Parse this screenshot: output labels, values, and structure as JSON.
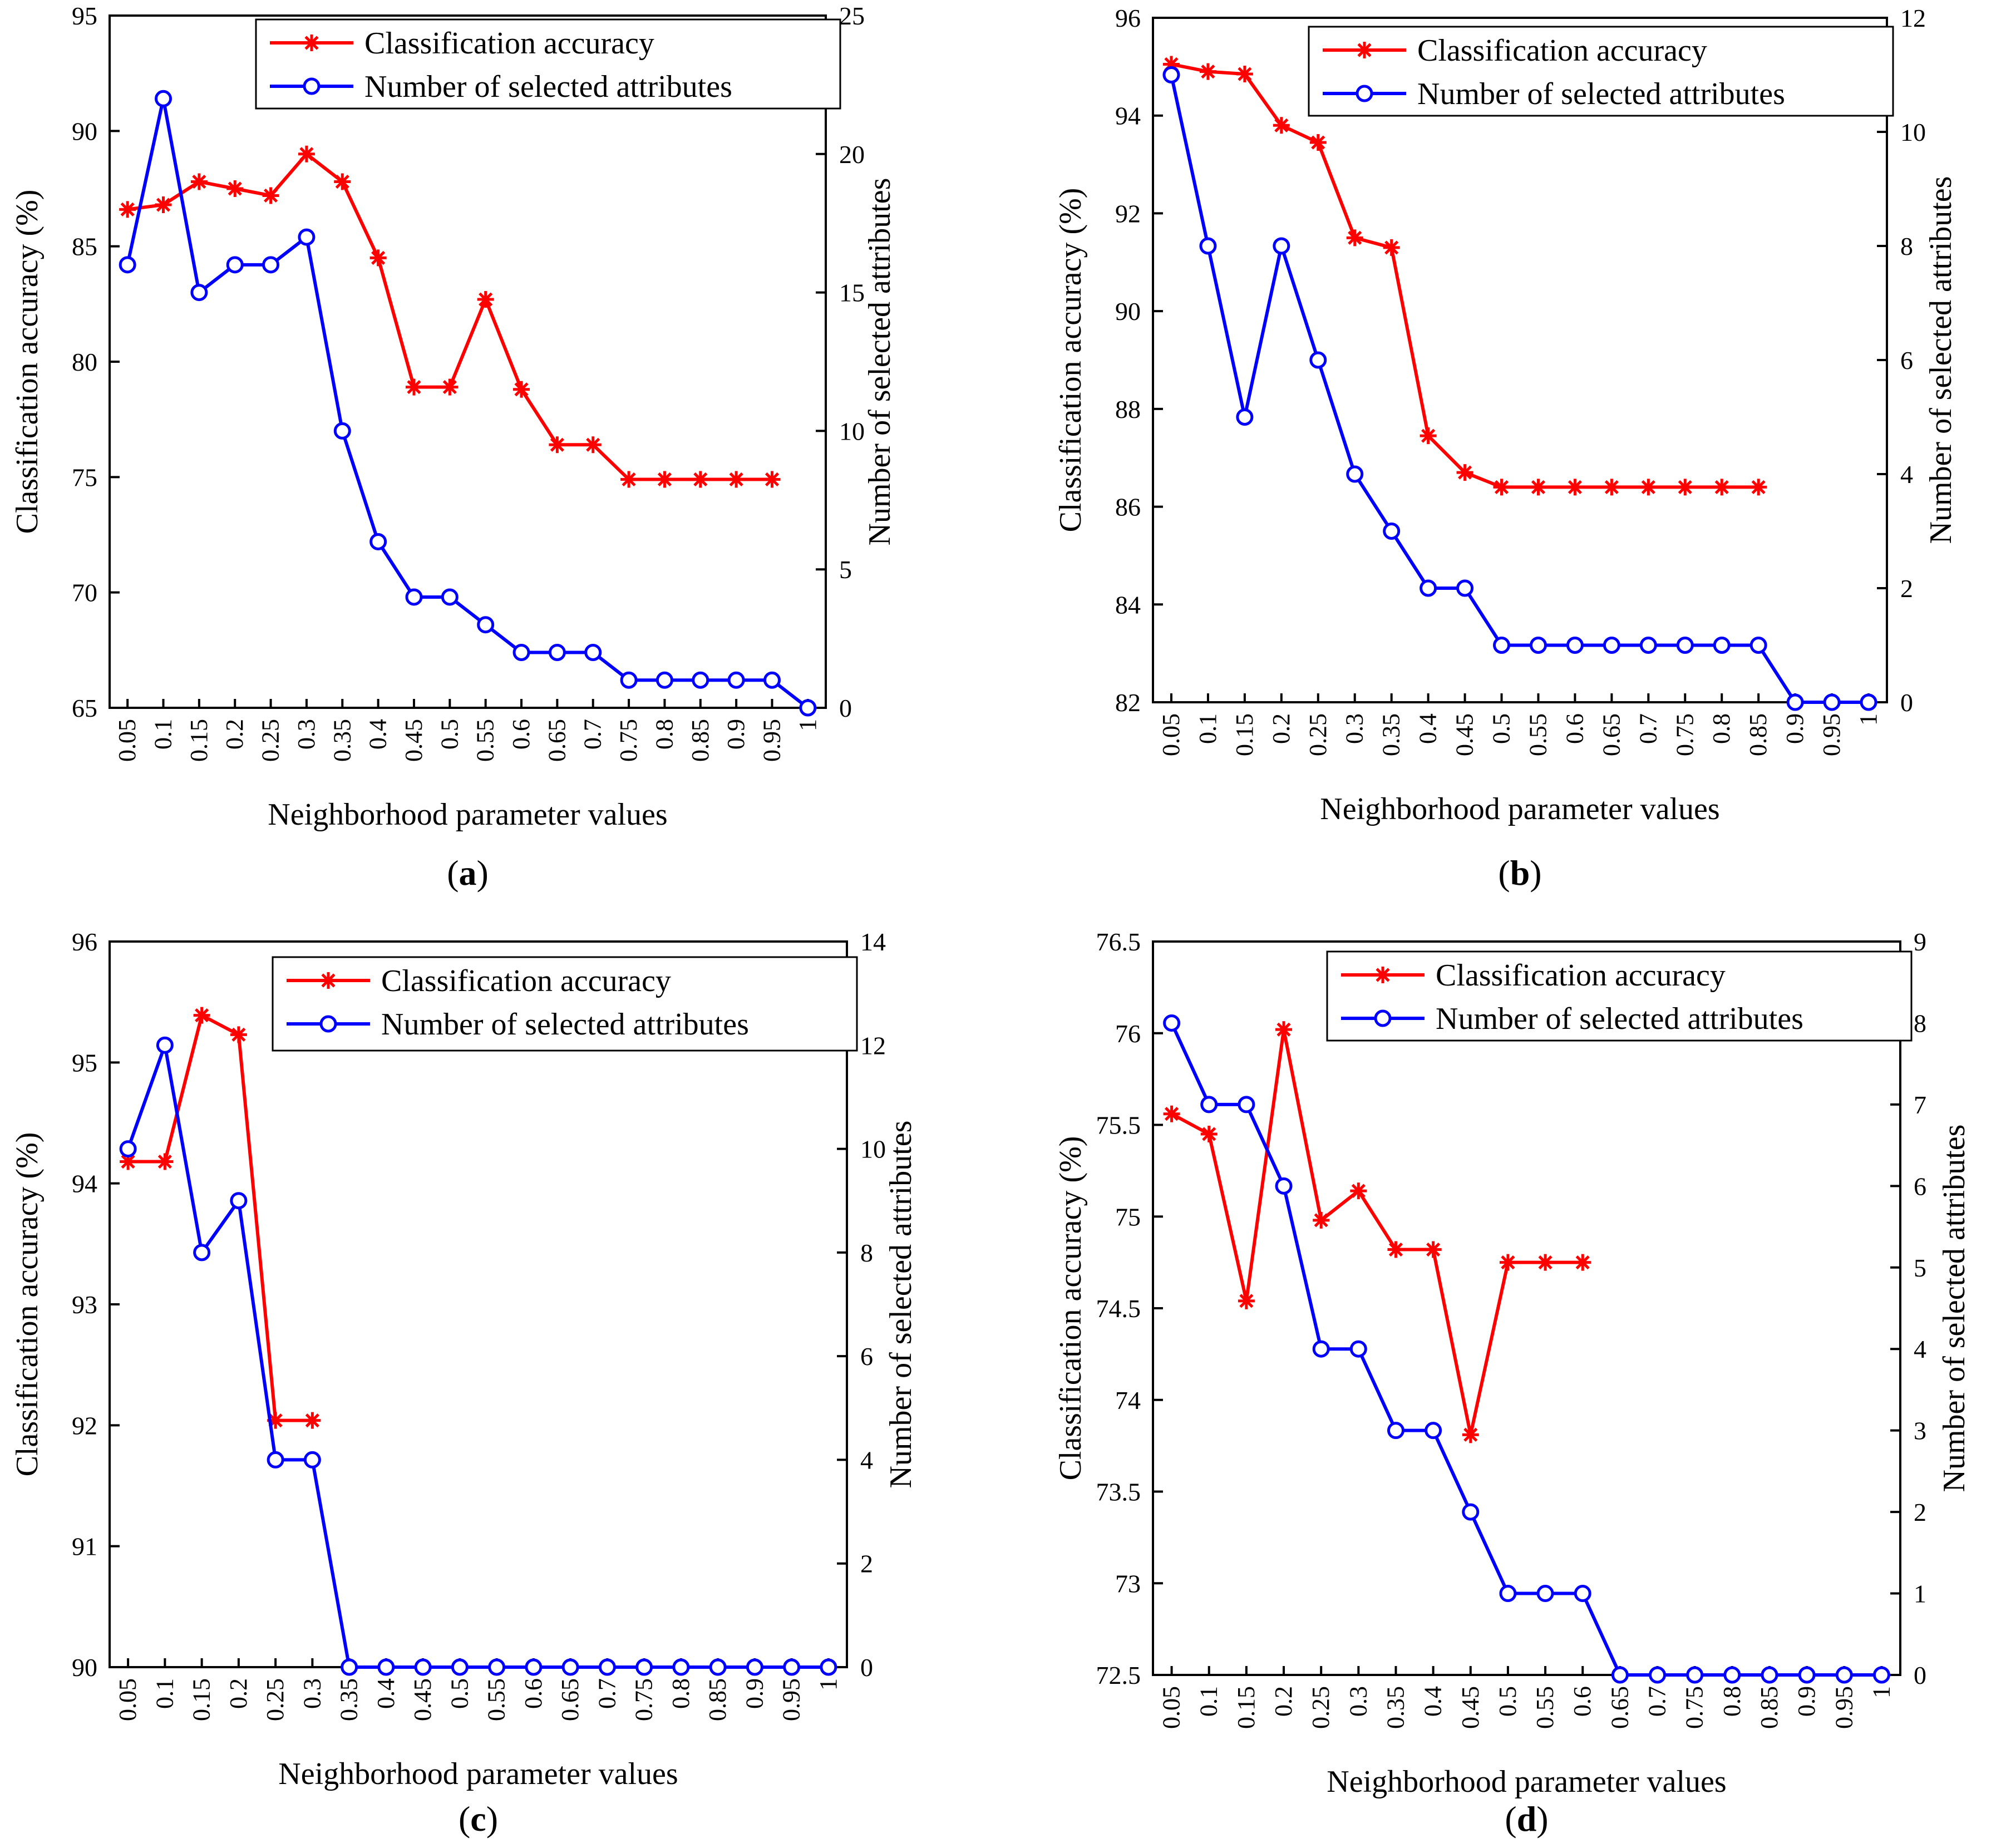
{
  "chart_data": [
    {
      "type": "line",
      "panel_label": "a",
      "xlabel": "Neighborhood parameter values",
      "ylabel": "Classification accuracy (%)",
      "y2label": "Number of selected attributes",
      "categories": [
        "0.05",
        "0.1",
        "0.15",
        "0.2",
        "0.25",
        "0.3",
        "0.35",
        "0.4",
        "0.45",
        "0.5",
        "0.55",
        "0.6",
        "0.65",
        "0.7",
        "0.75",
        "0.8",
        "0.85",
        "0.9",
        "0.95",
        "1"
      ],
      "ylim": [
        65,
        95
      ],
      "yticks": [
        65,
        70,
        75,
        80,
        85,
        90,
        95
      ],
      "y2lim": [
        0,
        25
      ],
      "y2ticks": [
        0,
        5,
        10,
        15,
        20,
        25
      ],
      "legend_position": "top-right",
      "series": [
        {
          "name": "Classification accuracy",
          "axis": "left",
          "color": "#ff0000",
          "marker": "asterisk",
          "values": [
            86.6,
            86.8,
            87.8,
            87.5,
            87.2,
            89.0,
            87.8,
            84.5,
            78.9,
            78.9,
            82.7,
            78.8,
            76.4,
            76.4,
            74.9,
            74.9,
            74.9,
            74.9,
            74.9,
            null
          ]
        },
        {
          "name": "Number of selected attributes",
          "axis": "right",
          "color": "#0000ff",
          "marker": "circle",
          "values": [
            16,
            22,
            15,
            16,
            16,
            17,
            10,
            6,
            4,
            4,
            3,
            2,
            2,
            2,
            1,
            1,
            1,
            1,
            1,
            0
          ]
        }
      ]
    },
    {
      "type": "line",
      "panel_label": "b",
      "xlabel": "Neighborhood parameter values",
      "ylabel": "Classification accuracy (%)",
      "y2label": "Number of selected attributes",
      "categories": [
        "0.05",
        "0.1",
        "0.15",
        "0.2",
        "0.25",
        "0.3",
        "0.35",
        "0.4",
        "0.45",
        "0.5",
        "0.55",
        "0.6",
        "0.65",
        "0.7",
        "0.75",
        "0.8",
        "0.85",
        "0.9",
        "0.95",
        "1"
      ],
      "ylim": [
        82,
        96
      ],
      "yticks": [
        82,
        84,
        86,
        88,
        90,
        92,
        94,
        96
      ],
      "y2lim": [
        0,
        12
      ],
      "y2ticks": [
        0,
        2,
        4,
        6,
        8,
        10,
        12
      ],
      "legend_position": "top-right",
      "series": [
        {
          "name": "Classification accuracy",
          "axis": "left",
          "color": "#ff0000",
          "marker": "asterisk",
          "values": [
            95.05,
            94.9,
            94.85,
            93.8,
            93.45,
            91.5,
            91.3,
            87.45,
            86.7,
            86.4,
            86.4,
            86.4,
            86.4,
            86.4,
            86.4,
            86.4,
            86.4,
            null,
            null,
            null
          ]
        },
        {
          "name": "Number of selected attributes",
          "axis": "right",
          "color": "#0000ff",
          "marker": "circle",
          "values": [
            11,
            8,
            5,
            8,
            6,
            4,
            3,
            2,
            2,
            1,
            1,
            1,
            1,
            1,
            1,
            1,
            1,
            0,
            0,
            0
          ]
        }
      ]
    },
    {
      "type": "line",
      "panel_label": "c",
      "xlabel": "Neighborhood parameter values",
      "ylabel": "Classification accuracy (%)",
      "y2label": "Number of selected attributes",
      "categories": [
        "0.05",
        "0.1",
        "0.15",
        "0.2",
        "0.25",
        "0.3",
        "0.35",
        "0.4",
        "0.45",
        "0.5",
        "0.55",
        "0.6",
        "0.65",
        "0.7",
        "0.75",
        "0.8",
        "0.85",
        "0.9",
        "0.95",
        "1"
      ],
      "ylim": [
        90,
        96
      ],
      "yticks": [
        90,
        91,
        92,
        93,
        94,
        95,
        96
      ],
      "y2lim": [
        0,
        14
      ],
      "y2ticks": [
        0,
        2,
        4,
        6,
        8,
        10,
        12,
        14
      ],
      "legend_position": "top-right",
      "series": [
        {
          "name": "Classification accuracy",
          "axis": "left",
          "color": "#ff0000",
          "marker": "asterisk",
          "values": [
            94.18,
            94.18,
            95.39,
            95.23,
            92.04,
            92.04,
            null,
            null,
            null,
            null,
            null,
            null,
            null,
            null,
            null,
            null,
            null,
            null,
            null,
            null
          ]
        },
        {
          "name": "Number of selected attributes",
          "axis": "right",
          "color": "#0000ff",
          "marker": "circle",
          "values": [
            10,
            12,
            8,
            9,
            4,
            4,
            0,
            0,
            0,
            0,
            0,
            0,
            0,
            0,
            0,
            0,
            0,
            0,
            0,
            0
          ]
        }
      ]
    },
    {
      "type": "line",
      "panel_label": "d",
      "xlabel": "Neighborhood parameter values",
      "ylabel": "Classification accuracy (%)",
      "y2label": "Number of selected attributes",
      "categories": [
        "0.05",
        "0.1",
        "0.15",
        "0.2",
        "0.25",
        "0.3",
        "0.35",
        "0.4",
        "0.45",
        "0.5",
        "0.55",
        "0.6",
        "0.65",
        "0.7",
        "0.75",
        "0.8",
        "0.85",
        "0.9",
        "0.95",
        "1"
      ],
      "ylim": [
        72.5,
        76.5
      ],
      "yticks": [
        72.5,
        73,
        73.5,
        74,
        74.5,
        75,
        75.5,
        76,
        76.5
      ],
      "y2lim": [
        0,
        9
      ],
      "y2ticks": [
        0,
        1,
        2,
        3,
        4,
        5,
        6,
        7,
        8,
        9
      ],
      "legend_position": "top-right",
      "series": [
        {
          "name": "Classification accuracy",
          "axis": "left",
          "color": "#ff0000",
          "marker": "asterisk",
          "values": [
            75.56,
            75.45,
            74.54,
            76.02,
            74.98,
            75.14,
            74.82,
            74.82,
            73.81,
            74.75,
            74.75,
            74.75,
            null,
            null,
            null,
            null,
            null,
            null,
            null,
            null
          ]
        },
        {
          "name": "Number of selected attributes",
          "axis": "right",
          "color": "#0000ff",
          "marker": "circle",
          "values": [
            8,
            7,
            7,
            6,
            4,
            4,
            3,
            3,
            2,
            1,
            1,
            1,
            0,
            0,
            0,
            0,
            0,
            0,
            0,
            0
          ]
        }
      ]
    }
  ]
}
